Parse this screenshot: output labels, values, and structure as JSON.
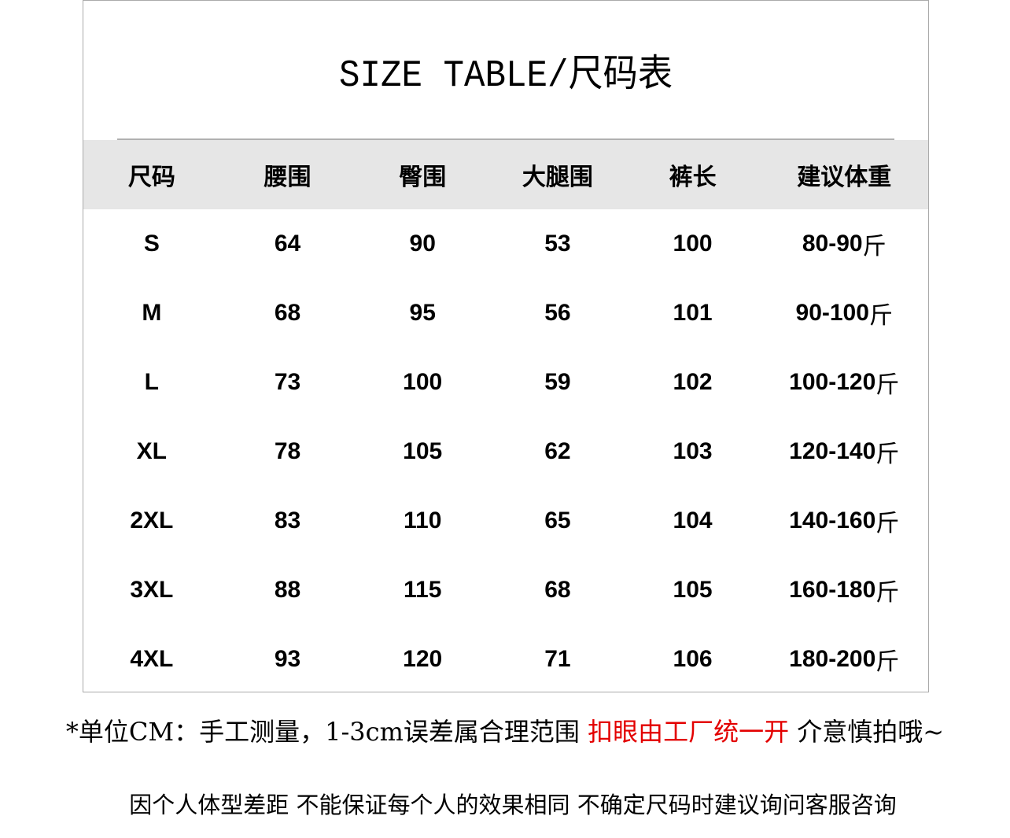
{
  "title": "SIZE TABLE/尺码表",
  "headers": [
    "尺码",
    "腰围",
    "臀围",
    "大腿围",
    "裤长",
    "建议体重"
  ],
  "weight_unit": "斤",
  "rows": [
    [
      "S",
      "64",
      "90",
      "53",
      "100",
      "80-90"
    ],
    [
      "M",
      "68",
      "95",
      "56",
      "101",
      "90-100"
    ],
    [
      "L",
      "73",
      "100",
      "59",
      "102",
      "100-120"
    ],
    [
      "XL",
      "78",
      "105",
      "62",
      "103",
      "120-140"
    ],
    [
      "2XL",
      "83",
      "110",
      "65",
      "104",
      "140-160"
    ],
    [
      "3XL",
      "88",
      "115",
      "68",
      "105",
      "160-180"
    ],
    [
      "4XL",
      "93",
      "120",
      "71",
      "106",
      "180-200"
    ]
  ],
  "notes": {
    "line1_a": "*单位CM：手工测量，1-3cm误差属合理范围",
    "line1_red": "扣眼由工厂统一开",
    "line1_b": "介意慎拍哦~",
    "line2": "因个人体型差距 不能保证每个人的效果相同 不确定尺码时建议询问客服咨询",
    "red_color": "#e30000"
  }
}
